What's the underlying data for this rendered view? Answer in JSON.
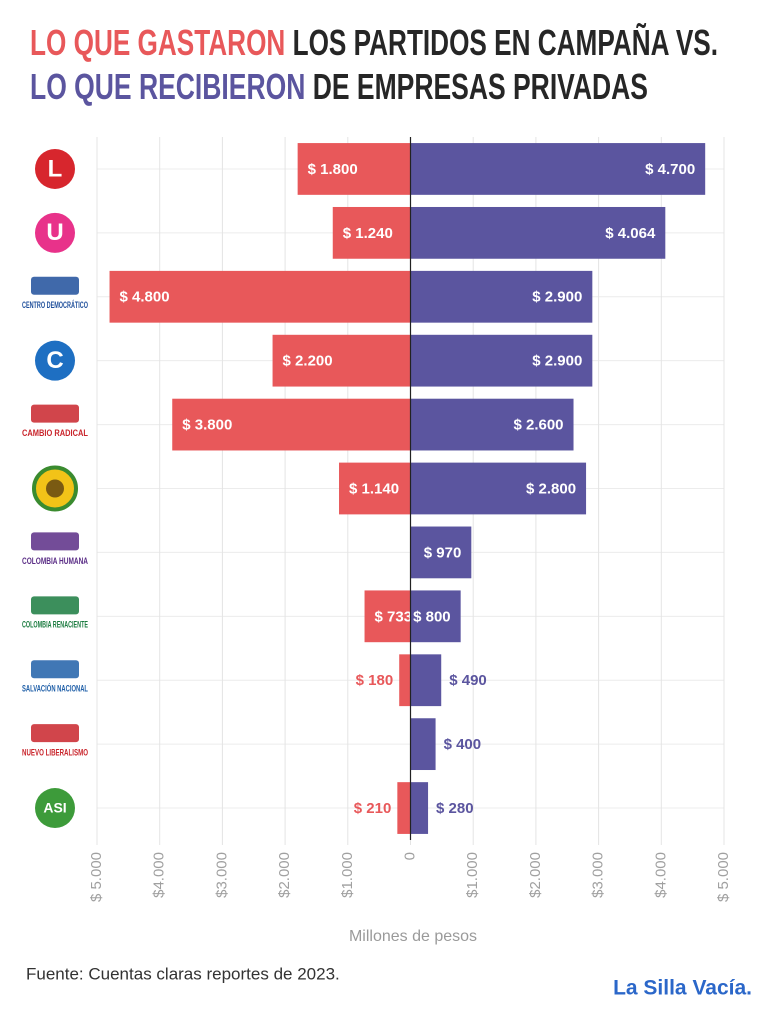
{
  "chart_data": {
    "type": "diverging-bar",
    "title": [
      "LOS PARTIDOS EN CAMPAÑA VS.",
      "DE EMPRESAS PRIVADAS"
    ],
    "categories": [
      "L",
      "U",
      "CENTRO DEMOCRÁTICO",
      "C",
      "CAMBIO RADICAL",
      null,
      "COLOMBIA HUMANA",
      "COLOMBIA RENACIENTE",
      "SALVACIÓN NACIONAL",
      "NUEVO LIBERALISMO",
      "ASI"
    ],
    "series": [
      {
        "name": "LO QUE GASTARON",
        "color": "#e8585a",
        "values": [
          -1800,
          -1240,
          -4800,
          -2200,
          -3800,
          -1140,
          null,
          -733,
          -180,
          null,
          -210
        ],
        "value_labels": [
          "$ 1.800",
          "$ 1.240",
          "$ 4.800",
          "$ 2.200",
          "$ 3.800",
          "$ 1.140",
          null,
          "$ 733",
          "$ 180",
          null,
          "$ 210"
        ]
      },
      {
        "name": "LO QUE RECIBIERON",
        "color": "#5b559f",
        "values": [
          4700,
          4064,
          2900,
          2900,
          2600,
          2800,
          970,
          800,
          490,
          400,
          280
        ],
        "value_labels": [
          "$ 4.700",
          "$ 4.064",
          "$ 2.900",
          "$ 2.900",
          "$ 2.600",
          "$ 2.800",
          "$ 970",
          "$ 800",
          "$ 490",
          "$ 400",
          "$ 280"
        ]
      }
    ],
    "xlim": [
      -5000,
      5000
    ],
    "xticks": [
      {
        "value": -5000,
        "label": "$ 5.000"
      },
      {
        "value": -4000,
        "label": "$4.000"
      },
      {
        "value": -3000,
        "label": "$3.000"
      },
      {
        "value": -2000,
        "label": "$2.000"
      },
      {
        "value": -1000,
        "label": "$1.000"
      },
      0,
      {
        "value": 1000,
        "label": "$1.000"
      },
      {
        "value": 2000,
        "label": "$2.000"
      },
      {
        "value": 3000,
        "label": "$3.000"
      },
      {
        "value": 4000,
        "label": "$4.000"
      },
      {
        "value": 5000,
        "label": "$ 5.000"
      }
    ],
    "xlabel": "Millones de pesos",
    "grid": true,
    "source": "Fuente: Cuentas claras reportes de 2023.",
    "brand": "La Silla Vacía."
  }
}
